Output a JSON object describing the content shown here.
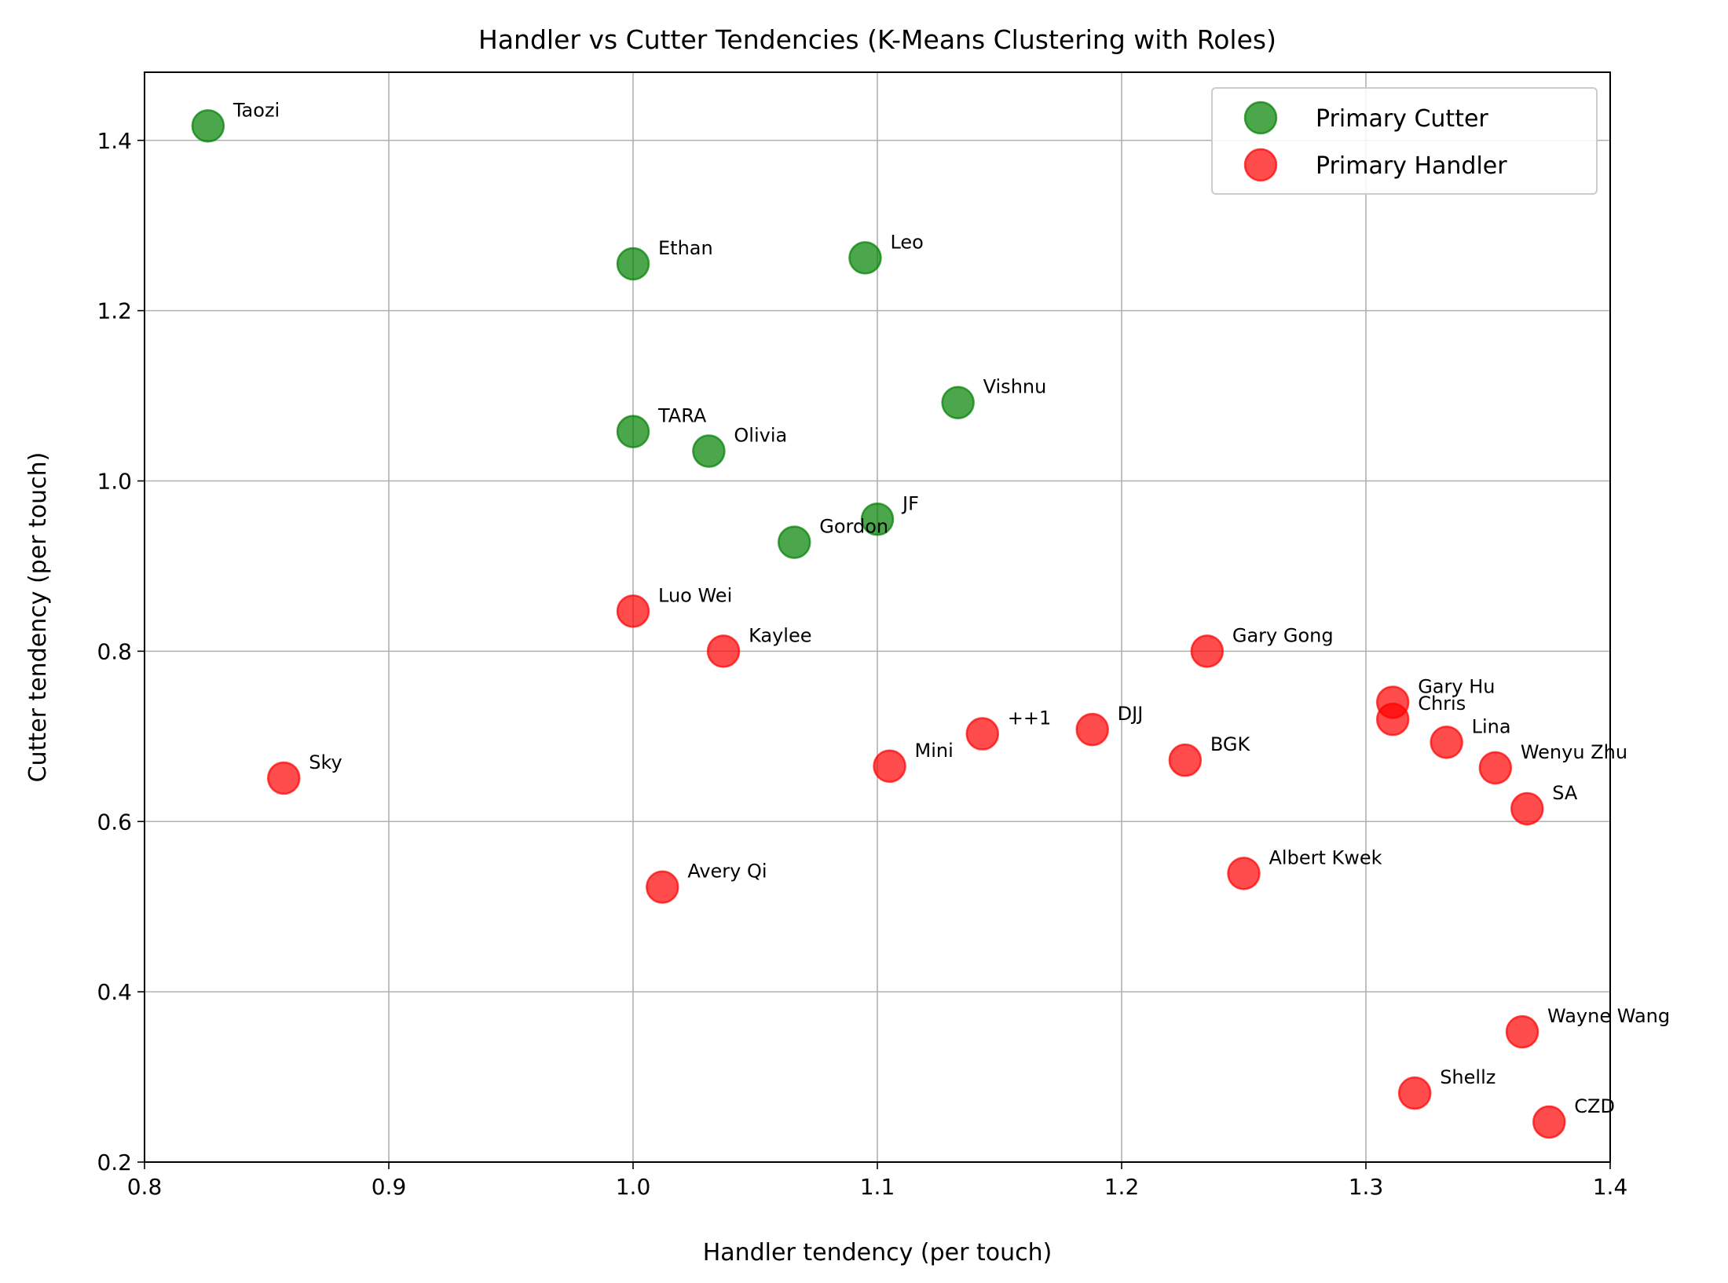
{
  "chart_data": {
    "type": "scatter",
    "title": "Handler vs Cutter Tendencies (K-Means Clustering with Roles)",
    "xlabel": "Handler tendency (per touch)",
    "ylabel": "Cutter tendency (per touch)",
    "xlim": [
      0.8,
      1.4
    ],
    "ylim": [
      0.2,
      1.48
    ],
    "xticks": [
      "0.8",
      "0.9",
      "1.0",
      "1.1",
      "1.2",
      "1.3",
      "1.4"
    ],
    "yticks": [
      "0.2",
      "0.4",
      "0.6",
      "0.8",
      "1.0",
      "1.2",
      "1.4"
    ],
    "grid": true,
    "legend_position": "top-right",
    "series": [
      {
        "name": "Primary Cutter",
        "color": "#008000",
        "points": [
          {
            "label": "Taozi",
            "x": 0.826,
            "y": 1.417
          },
          {
            "label": "Ethan",
            "x": 1.0,
            "y": 1.255
          },
          {
            "label": "Leo",
            "x": 1.095,
            "y": 1.262
          },
          {
            "label": "Vishnu",
            "x": 1.133,
            "y": 1.092
          },
          {
            "label": "TARA",
            "x": 1.0,
            "y": 1.058
          },
          {
            "label": "Olivia",
            "x": 1.031,
            "y": 1.035
          },
          {
            "label": "JF",
            "x": 1.1,
            "y": 0.955
          },
          {
            "label": "Gordon",
            "x": 1.066,
            "y": 0.928
          }
        ]
      },
      {
        "name": "Primary Handler",
        "color": "#ff0000",
        "points": [
          {
            "label": "Luo Wei",
            "x": 1.0,
            "y": 0.847
          },
          {
            "label": "Kaylee",
            "x": 1.037,
            "y": 0.8
          },
          {
            "label": "Gary Gong",
            "x": 1.235,
            "y": 0.8
          },
          {
            "label": "Gary Hu",
            "x": 1.311,
            "y": 0.74
          },
          {
            "label": "Chris",
            "x": 1.311,
            "y": 0.72
          },
          {
            "label": "Lina",
            "x": 1.333,
            "y": 0.693
          },
          {
            "label": "Wenyu Zhu",
            "x": 1.353,
            "y": 0.663
          },
          {
            "label": "SA",
            "x": 1.366,
            "y": 0.615
          },
          {
            "label": "++1",
            "x": 1.143,
            "y": 0.703
          },
          {
            "label": "DJJ",
            "x": 1.188,
            "y": 0.708
          },
          {
            "label": "BGK",
            "x": 1.226,
            "y": 0.672
          },
          {
            "label": "Mini",
            "x": 1.105,
            "y": 0.665
          },
          {
            "label": "Sky",
            "x": 0.857,
            "y": 0.651
          },
          {
            "label": "Albert Kwek",
            "x": 1.25,
            "y": 0.539
          },
          {
            "label": "Avery Qi",
            "x": 1.012,
            "y": 0.523
          },
          {
            "label": "Wayne Wang",
            "x": 1.364,
            "y": 0.353
          },
          {
            "label": "Shellz",
            "x": 1.32,
            "y": 0.281
          },
          {
            "label": "CZD",
            "x": 1.375,
            "y": 0.247
          }
        ]
      }
    ]
  }
}
